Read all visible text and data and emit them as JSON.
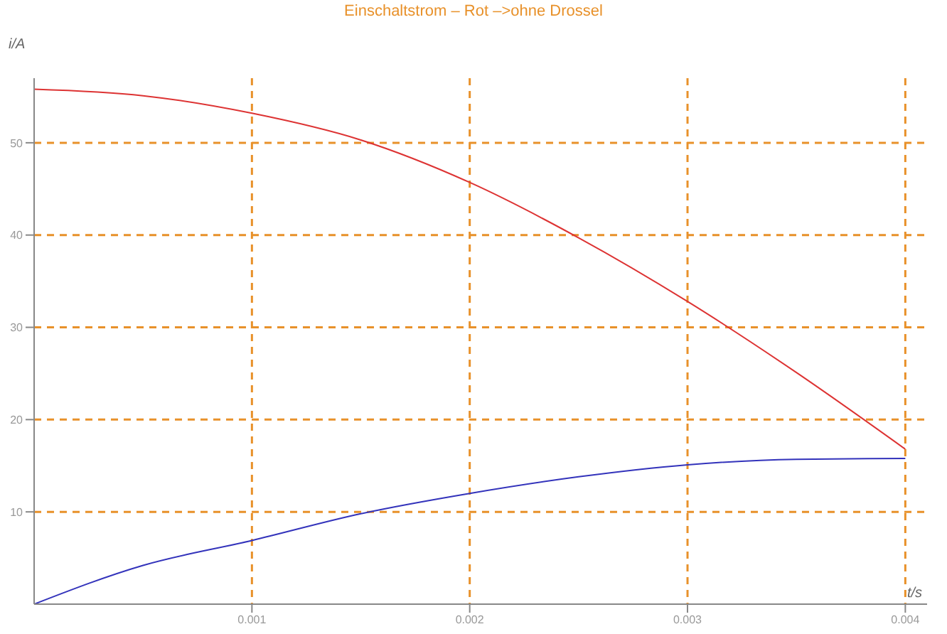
{
  "chart_data": {
    "type": "line",
    "title": "Einschaltstrom   – Rot –>ohne  Drossel",
    "xlabel": "t/s",
    "ylabel": "i/A",
    "x": [
      0,
      0.0005,
      0.001,
      0.0015,
      0.002,
      0.0025,
      0.003,
      0.0035,
      0.004
    ],
    "series": [
      {
        "color": "#dd3333",
        "values": [
          55.8,
          55.1,
          53.2,
          50.3,
          45.7,
          39.7,
          32.8,
          25.1,
          16.8
        ]
      },
      {
        "color": "#3333bb",
        "values": [
          0,
          4.2,
          6.9,
          9.8,
          12.0,
          13.8,
          15.1,
          15.7,
          15.8
        ]
      }
    ],
    "xlim": [
      0,
      0.0041
    ],
    "ylim": [
      0,
      57
    ],
    "xticks": [
      0.001,
      0.002,
      0.003,
      0.004
    ],
    "yticks": [
      10,
      20,
      30,
      40,
      50
    ],
    "grid": true,
    "marker": "none",
    "line_style": "solid"
  }
}
